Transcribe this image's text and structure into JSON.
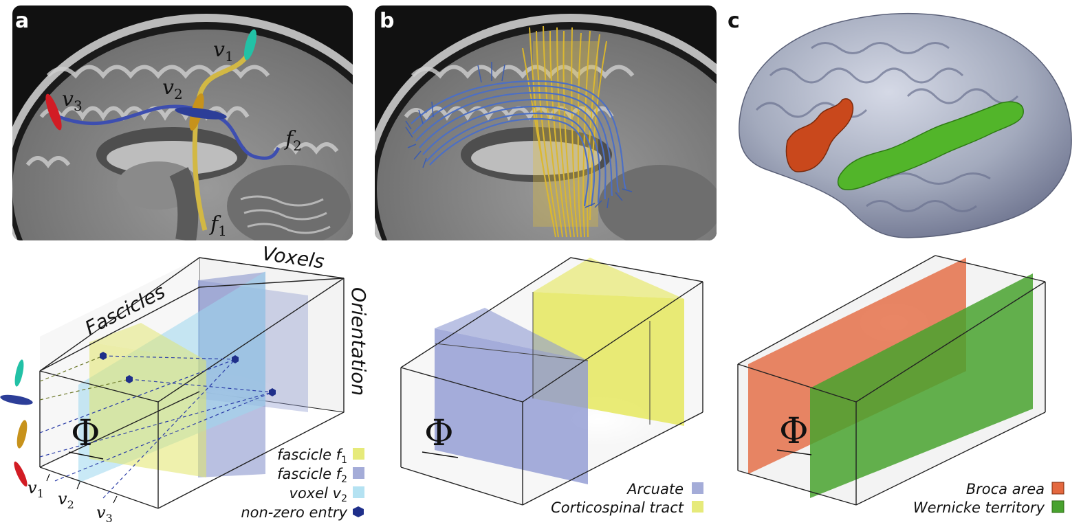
{
  "panels": {
    "a": {
      "letter": "a",
      "labels": {
        "v1": "v",
        "v1_sub": "1",
        "v2": "v",
        "v2_sub": "2",
        "v3": "v",
        "v3_sub": "3",
        "f1": "f",
        "f1_sub": "1",
        "f2": "f",
        "f2_sub": "2"
      }
    },
    "b": {
      "letter": "b"
    },
    "c": {
      "letter": "c"
    }
  },
  "tensor_a": {
    "axis_fascicles": "Fascicles",
    "axis_voxels": "Voxels",
    "axis_orientation": "Orientation",
    "phi": "Φ",
    "ticks": [
      {
        "v": "v",
        "sub": "1"
      },
      {
        "v": "v",
        "sub": "2"
      },
      {
        "v": "v",
        "sub": "3"
      }
    ],
    "legend": [
      {
        "text": "fascicle f",
        "sub": "1",
        "color": "#e6ea7a"
      },
      {
        "text": "fascicle f",
        "sub": "2",
        "color": "#a4acd8"
      },
      {
        "text": "voxel v",
        "sub": "2",
        "color": "#b4e2f2"
      },
      {
        "text": "non-zero entry",
        "sub": "",
        "color": "#1f2f8a"
      }
    ]
  },
  "tensor_b": {
    "phi": "Φ",
    "legend": [
      {
        "text": "Arcuate",
        "color": "#a4acd8"
      },
      {
        "text": "Corticospinal tract",
        "color": "#e6ea7a"
      }
    ]
  },
  "tensor_c": {
    "phi": "Φ",
    "legend": [
      {
        "text": "Broca area",
        "color": "#e4683f"
      },
      {
        "text": "Wernicke territory",
        "color": "#48a22e"
      }
    ]
  },
  "colors": {
    "yellow_tract": "#d9b52c",
    "blue_tract": "#3d54b0",
    "ellipse_v1": "#22c1a6",
    "ellipse_v2": "#c7921b",
    "ellipse_v3": "#d21c24",
    "broca": "#c9481c",
    "wernicke": "#52b52a",
    "cortex": "#a7aebf"
  }
}
